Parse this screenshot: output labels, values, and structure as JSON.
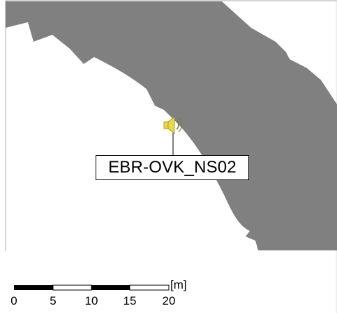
{
  "map": {
    "colors": {
      "building": "#808080",
      "background": "#ffffff",
      "frame": "#a9a9a9",
      "speaker_icon": "#e8d84a"
    },
    "source_marker": {
      "icon": "speaker-icon",
      "label": "EBR-OVK_NS02"
    },
    "scale_bar": {
      "unit": "[m]",
      "ticks": [
        "0",
        "5",
        "10",
        "15",
        "20"
      ],
      "max_value": 20
    }
  }
}
